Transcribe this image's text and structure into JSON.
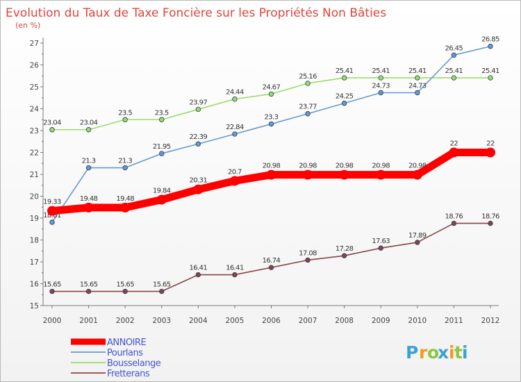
{
  "chart_data": {
    "type": "line",
    "title": "Evolution du Taux de Taxe Foncière sur les Propriétés Non Bâties",
    "ylabel": "(en %)",
    "xlabel": "",
    "ylim": [
      15,
      27
    ],
    "yticks": [
      "15",
      "16",
      "17",
      "18",
      "19",
      "20",
      "21",
      "22",
      "23",
      "24",
      "25",
      "26",
      "27"
    ],
    "categories": [
      "2000",
      "2001",
      "2002",
      "2003",
      "2004",
      "2005",
      "2006",
      "2007",
      "2008",
      "2009",
      "2010",
      "2011",
      "2012"
    ],
    "grid": false,
    "legend_position": "bottom-left",
    "series": [
      {
        "name": "ANNOIRE",
        "color": "#ff0000",
        "values": [
          19.33,
          19.48,
          19.48,
          19.84,
          20.31,
          20.7,
          20.98,
          20.98,
          20.98,
          20.98,
          20.98,
          22,
          22
        ],
        "labels": [
          "19.33",
          "19.48",
          "19.48",
          "19.84",
          "20.31",
          "20.7",
          "20.98",
          "20.98",
          "20.98",
          "20.98",
          "20.98",
          "22",
          "22"
        ]
      },
      {
        "name": "Pourlans",
        "color": "#6699cc",
        "values": [
          18.81,
          21.3,
          21.3,
          21.95,
          22.39,
          22.84,
          23.3,
          23.77,
          24.25,
          24.73,
          24.73,
          26.45,
          26.85
        ],
        "labels": [
          "18.81",
          "21.3",
          "21.3",
          "21.95",
          "22.39",
          "22.84",
          "23.3",
          "23.77",
          "24.25",
          "24.73",
          "24.73",
          "26.45",
          "26.85"
        ]
      },
      {
        "name": "Bousselange",
        "color": "#99dd66",
        "values": [
          23.04,
          23.04,
          23.5,
          23.5,
          23.97,
          24.44,
          24.67,
          25.16,
          25.41,
          25.41,
          25.41,
          25.41,
          25.41
        ],
        "labels": [
          "23.04",
          "23.04",
          "23.5",
          "23.5",
          "23.97",
          "24.44",
          "24.67",
          "25.16",
          "25.41",
          "25.41",
          "25.41",
          "25.41",
          "25.41"
        ]
      },
      {
        "name": "Fretterans",
        "color": "#884444",
        "values": [
          15.65,
          15.65,
          15.65,
          15.65,
          16.41,
          16.41,
          16.74,
          17.08,
          17.28,
          17.63,
          17.89,
          18.76,
          18.76
        ],
        "labels": [
          "15.65",
          "15.65",
          "15.65",
          "15.65",
          "16.41",
          "16.41",
          "16.74",
          "17.08",
          "17.28",
          "17.63",
          "17.89",
          "18.76",
          "18.76"
        ]
      }
    ]
  },
  "logo": {
    "letters": [
      "P",
      "r",
      "o",
      "x",
      "i",
      "t",
      "i"
    ],
    "colors": [
      "#3aa0d8",
      "#f29a1d",
      "#8cc63f",
      "#3aa0d8",
      "#f29a1d",
      "#8cc63f",
      "#3aa0d8"
    ]
  }
}
